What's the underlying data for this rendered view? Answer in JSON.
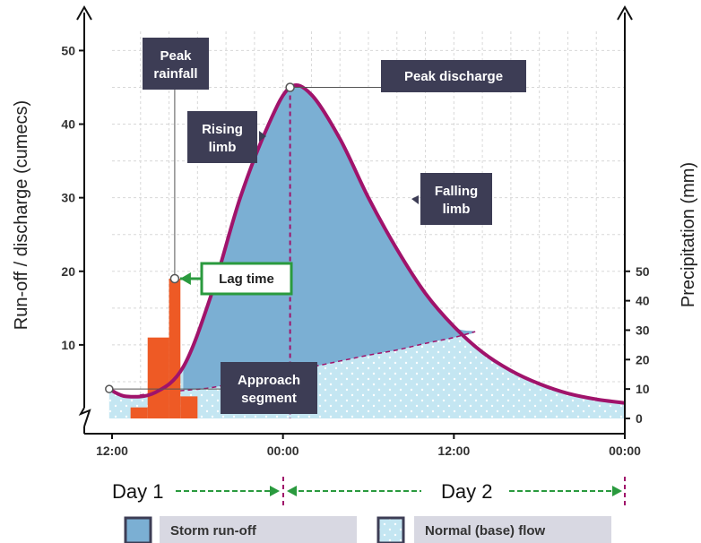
{
  "chart_data": {
    "type": "line",
    "ylabel_left": "Run-off / discharge (cumecs)",
    "ylabel_right": "Precipitation (mm)",
    "left_ylim": [
      0,
      52
    ],
    "left_yticks": [
      "10",
      "20",
      "30",
      "40",
      "50"
    ],
    "right_ylim": [
      0,
      52
    ],
    "right_yticks": [
      "0",
      "10",
      "20",
      "30",
      "40",
      "50"
    ],
    "x_range_hours": [
      0,
      36
    ],
    "x_ticks": [
      {
        "label": "12:00",
        "x": 0
      },
      {
        "label": "00:00",
        "x": 12
      },
      {
        "label": "12:00",
        "x": 24
      },
      {
        "label": "00:00",
        "x": 36
      }
    ],
    "grid": true,
    "series": [
      {
        "kind": "discharge",
        "points": [
          [
            -0.2,
            4
          ],
          [
            1,
            3
          ],
          [
            3,
            3.5
          ],
          [
            5,
            7
          ],
          [
            7,
            17
          ],
          [
            9,
            30
          ],
          [
            11,
            40
          ],
          [
            12.5,
            45
          ],
          [
            14,
            44
          ],
          [
            16,
            38
          ],
          [
            18,
            30
          ],
          [
            20,
            23
          ],
          [
            22,
            17
          ],
          [
            24,
            12.5
          ],
          [
            26,
            9
          ],
          [
            28,
            6.5
          ],
          [
            30,
            4.7
          ],
          [
            32,
            3.4
          ],
          [
            34,
            2.6
          ],
          [
            36,
            2.1
          ]
        ]
      },
      {
        "kind": "baseflow",
        "points": [
          [
            -0.2,
            4
          ],
          [
            1,
            3
          ],
          [
            3,
            3.5
          ],
          [
            5,
            3.8
          ],
          [
            7,
            4.2
          ],
          [
            9,
            5
          ],
          [
            11,
            5.5
          ],
          [
            12.5,
            6.5
          ],
          [
            14,
            7
          ],
          [
            16,
            7.8
          ],
          [
            18,
            8.6
          ],
          [
            20,
            9.3
          ],
          [
            22,
            10.2
          ],
          [
            24,
            11
          ],
          [
            25.5,
            11.8
          ]
        ]
      },
      {
        "kind": "precipitation",
        "bars": [
          {
            "x0": 1.3,
            "x1": 2.5,
            "value": 1.5
          },
          {
            "x0": 2.5,
            "x1": 4.0,
            "value": 11
          },
          {
            "x0": 4.0,
            "x1": 4.8,
            "value": 19
          },
          {
            "x0": 4.8,
            "x1": 6.0,
            "value": 3
          }
        ]
      }
    ],
    "annotations": {
      "peak_rainfall": "Peak\nrainfall",
      "rising_limb": "Rising\nlimb",
      "peak_discharge": "Peak discharge",
      "falling_limb": "Falling\nlimb",
      "lag_time": "Lag time",
      "approach_segment": "Approach\nsegment"
    },
    "day_labels": [
      "Day 1",
      "Day 2"
    ],
    "legend": [
      {
        "label": "Storm run-off",
        "color": "#7bafd3"
      },
      {
        "label": "Normal (base) flow",
        "color": "#c4e6f2"
      }
    ],
    "colors": {
      "curve": "#a0136b",
      "storm": "#7bafd3",
      "base": "#c4e6f2",
      "bars": "#ee5a25",
      "label_bg": "#3d3d55",
      "green": "#2a9a3e",
      "legend_bg": "#d8d8e2"
    }
  }
}
